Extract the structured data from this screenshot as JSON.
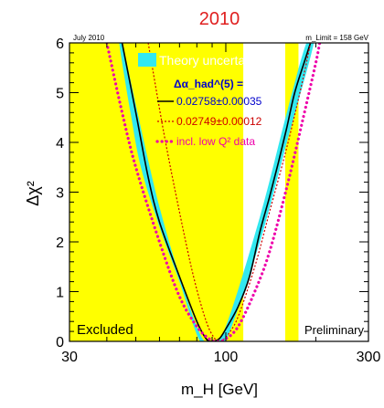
{
  "chart_data": {
    "type": "line",
    "title": "2010",
    "corner_left": "July 2010",
    "corner_right": "m_Limit = 158 GeV",
    "xlabel": "m_H [GeV]",
    "ylabel": "Δχ²",
    "xscale": "log",
    "xlim": [
      30,
      300
    ],
    "ylim": [
      0,
      6
    ],
    "xticks": [
      {
        "value": 30,
        "label": "30"
      },
      {
        "value": 100,
        "label": "100"
      },
      {
        "value": 300,
        "label": "300"
      }
    ],
    "yticks": [
      {
        "value": 0,
        "label": "0"
      },
      {
        "value": 1,
        "label": "1"
      },
      {
        "value": 2,
        "label": "2"
      },
      {
        "value": 3,
        "label": "3"
      },
      {
        "value": 4,
        "label": "4"
      },
      {
        "value": 5,
        "label": "5"
      },
      {
        "value": 6,
        "label": "6"
      }
    ],
    "excluded_regions": [
      {
        "label": "Excluded",
        "x": [
          30,
          114.4
        ]
      },
      {
        "label": "",
        "x": [
          158,
          175
        ]
      }
    ],
    "annotations": {
      "excluded": "Excluded",
      "preliminary": "Preliminary"
    },
    "band": {
      "name": "Theory uncertainty",
      "color": "#33e8f0",
      "points": [
        {
          "x": 45.0,
          "y": 6.0
        },
        {
          "x": 60.0,
          "y": 2.7
        },
        {
          "x": 80.0,
          "y": 0.3
        },
        {
          "x": 90.0,
          "y": 0.0
        },
        {
          "x": 100.0,
          "y": 0.3
        },
        {
          "x": 130.0,
          "y": 2.5
        },
        {
          "x": 160.0,
          "y": 4.6
        },
        {
          "x": 186.0,
          "y": 6.0
        },
        {
          "x": 197.0,
          "y": 6.0
        },
        {
          "x": 160.0,
          "y": 4.0
        },
        {
          "x": 130.0,
          "y": 2.0
        },
        {
          "x": 100.0,
          "y": 0.0
        },
        {
          "x": 92.0,
          "y": 0.0
        },
        {
          "x": 82.0,
          "y": 0.0
        },
        {
          "x": 70.0,
          "y": 1.2
        },
        {
          "x": 60.0,
          "y": 2.3
        },
        {
          "x": 52.0,
          "y": 3.5
        },
        {
          "x": 48.0,
          "y": 4.6
        },
        {
          "x": 44.0,
          "y": 6.0
        }
      ]
    },
    "legend_header": "Δα_had^(5) =",
    "series": [
      {
        "name": "0.02758±0.00035",
        "style": "solid",
        "color": "#000000",
        "legend_text_color": "#0000cc",
        "points": [
          {
            "x": 45.0,
            "y": 6.0
          },
          {
            "x": 50.0,
            "y": 4.6
          },
          {
            "x": 55.0,
            "y": 3.3
          },
          {
            "x": 60.0,
            "y": 2.4
          },
          {
            "x": 70.0,
            "y": 1.3
          },
          {
            "x": 80.0,
            "y": 0.4
          },
          {
            "x": 86.0,
            "y": 0.05
          },
          {
            "x": 90.0,
            "y": 0.0
          },
          {
            "x": 95.0,
            "y": 0.05
          },
          {
            "x": 100.0,
            "y": 0.25
          },
          {
            "x": 110.0,
            "y": 0.7
          },
          {
            "x": 120.0,
            "y": 1.3
          },
          {
            "x": 130.0,
            "y": 2.2
          },
          {
            "x": 140.0,
            "y": 2.9
          },
          {
            "x": 150.0,
            "y": 3.6
          },
          {
            "x": 160.0,
            "y": 4.3
          },
          {
            "x": 170.0,
            "y": 5.0
          },
          {
            "x": 185.0,
            "y": 5.7
          },
          {
            "x": 192.0,
            "y": 6.0
          }
        ]
      },
      {
        "name": "0.02749±0.00012",
        "style": "dotted",
        "color": "#cc0000",
        "legend_text_color": "#cc0000",
        "points": [
          {
            "x": 55.0,
            "y": 6.0
          },
          {
            "x": 62.0,
            "y": 4.2
          },
          {
            "x": 70.0,
            "y": 2.6
          },
          {
            "x": 78.0,
            "y": 1.3
          },
          {
            "x": 86.0,
            "y": 0.4
          },
          {
            "x": 92.0,
            "y": 0.05
          },
          {
            "x": 96.0,
            "y": 0.0
          },
          {
            "x": 102.0,
            "y": 0.15
          },
          {
            "x": 110.0,
            "y": 0.5
          },
          {
            "x": 125.0,
            "y": 1.5
          },
          {
            "x": 140.0,
            "y": 2.6
          },
          {
            "x": 160.0,
            "y": 3.9
          },
          {
            "x": 180.0,
            "y": 5.2
          },
          {
            "x": 192.0,
            "y": 6.0
          }
        ]
      },
      {
        "name": "incl. low Q² data",
        "style": "dotted-thick",
        "color": "#ee00aa",
        "legend_text_color": "#ee00aa",
        "points": [
          {
            "x": 40.0,
            "y": 6.0
          },
          {
            "x": 45.0,
            "y": 4.6
          },
          {
            "x": 50.0,
            "y": 3.5
          },
          {
            "x": 60.0,
            "y": 2.0
          },
          {
            "x": 70.0,
            "y": 0.9
          },
          {
            "x": 80.0,
            "y": 0.3
          },
          {
            "x": 88.0,
            "y": 0.05
          },
          {
            "x": 93.0,
            "y": 0.0
          },
          {
            "x": 100.0,
            "y": 0.05
          },
          {
            "x": 110.0,
            "y": 0.3
          },
          {
            "x": 125.0,
            "y": 1.0
          },
          {
            "x": 140.0,
            "y": 1.8
          },
          {
            "x": 160.0,
            "y": 3.1
          },
          {
            "x": 180.0,
            "y": 4.4
          },
          {
            "x": 200.0,
            "y": 5.6
          },
          {
            "x": 206.0,
            "y": 6.0
          }
        ]
      }
    ]
  },
  "colors": {
    "excluded_fill": "#ffff00",
    "band": "#33e8f0",
    "title": "#e02020",
    "legend_header": "#0000cc"
  }
}
